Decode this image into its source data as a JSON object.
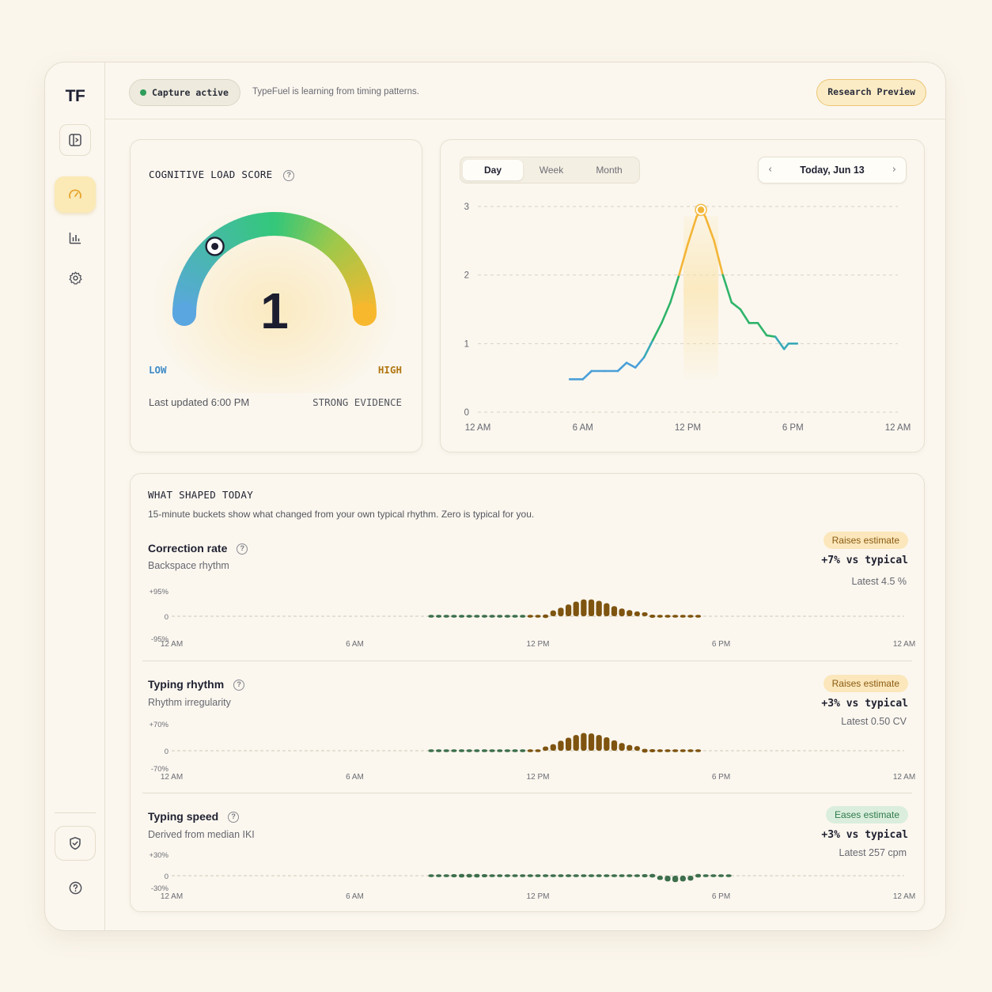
{
  "sidebar": {
    "logo": "TF",
    "items": [
      {
        "name": "panel-toggle-icon"
      },
      {
        "name": "gauge-icon",
        "active": true
      },
      {
        "name": "bar-chart-icon"
      },
      {
        "name": "gear-icon"
      },
      {
        "name": "shield-icon"
      },
      {
        "name": "help-icon"
      }
    ]
  },
  "topbar": {
    "status_pill": "Capture active",
    "status_message": "TypeFuel is learning from timing patterns.",
    "preview_badge": "Research Preview"
  },
  "gauge": {
    "title": "COGNITIVE LOAD SCORE",
    "score": "1",
    "score_fraction": 0.27,
    "low_label": "LOW",
    "high_label": "HIGH",
    "last_updated": "Last updated 6:00 PM",
    "evidence": "STRONG EVIDENCE"
  },
  "timeline": {
    "tabs": [
      "Day",
      "Week",
      "Month"
    ],
    "active_tab": "Day",
    "date_label": "Today, Jun 13",
    "chart_data": {
      "type": "line",
      "x_unit": "hour",
      "xlim": [
        0,
        24
      ],
      "ylim": [
        0,
        3
      ],
      "yticks": [
        0,
        1,
        2,
        3
      ],
      "xtick_labels": [
        "12 AM",
        "6 AM",
        "12 PM",
        "6 PM",
        "12 AM"
      ],
      "points": [
        [
          5.25,
          0.48
        ],
        [
          6.0,
          0.48
        ],
        [
          6.5,
          0.6
        ],
        [
          7.25,
          0.6
        ],
        [
          8.0,
          0.6
        ],
        [
          8.5,
          0.72
        ],
        [
          9.0,
          0.65
        ],
        [
          9.5,
          0.8
        ],
        [
          10.0,
          1.05
        ],
        [
          10.5,
          1.3
        ],
        [
          11.0,
          1.6
        ],
        [
          11.5,
          2.0
        ],
        [
          12.0,
          2.45
        ],
        [
          12.5,
          2.85
        ],
        [
          12.75,
          2.95
        ],
        [
          13.0,
          2.85
        ],
        [
          13.5,
          2.5
        ],
        [
          14.0,
          2.0
        ],
        [
          14.5,
          1.6
        ],
        [
          15.0,
          1.5
        ],
        [
          15.5,
          1.3
        ],
        [
          16.0,
          1.3
        ],
        [
          16.5,
          1.12
        ],
        [
          17.0,
          1.1
        ],
        [
          17.5,
          0.92
        ],
        [
          17.75,
          1.0
        ],
        [
          18.25,
          1.0
        ]
      ],
      "peak": {
        "x": 12.75,
        "y": 2.95
      }
    }
  },
  "shaped": {
    "title": "WHAT SHAPED TODAY",
    "subtitle": "15-minute buckets show what changed from your own typical rhythm. Zero is typical for you.",
    "x_labels": [
      "12 AM",
      "6 AM",
      "12 PM",
      "6 PM",
      "12 AM"
    ],
    "metrics": [
      {
        "name": "Correction rate",
        "desc": "Backspace rhythm",
        "badge": "Raises estimate",
        "badge_kind": "raise",
        "delta": "+7% vs typical",
        "latest": "Latest 4.5 %",
        "ymax_label": "+95%",
        "zero_label": "0",
        "ymin_label": "-95%",
        "chart_data": {
          "type": "bar",
          "ylim": [
            -95,
            95
          ],
          "start_hour": 8.5,
          "bucket_minutes": 15,
          "values": [
            -6,
            -7,
            -7,
            -7,
            -7,
            -7,
            -7,
            -6,
            -6,
            -5,
            -5,
            -4,
            -3,
            3,
            7,
            13,
            22,
            32,
            44,
            55,
            63,
            63,
            58,
            49,
            38,
            29,
            23,
            18,
            15,
            12,
            10,
            8,
            6,
            5,
            4,
            3
          ]
        }
      },
      {
        "name": "Typing rhythm",
        "desc": "Rhythm irregularity",
        "badge": "Raises estimate",
        "badge_kind": "raise",
        "delta": "+3% vs typical",
        "latest": "Latest 0.50 CV",
        "ymax_label": "+70%",
        "zero_label": "0",
        "ymin_label": "-70%",
        "chart_data": {
          "type": "bar",
          "ylim": [
            -70,
            70
          ],
          "start_hour": 8.5,
          "bucket_minutes": 15,
          "values": [
            -6,
            -7,
            -7,
            -7,
            -7,
            -7,
            -7,
            -6,
            -6,
            -5,
            -5,
            -4,
            -3,
            3,
            6,
            11,
            17,
            26,
            34,
            41,
            46,
            45,
            41,
            35,
            27,
            20,
            15,
            12,
            10,
            8,
            7,
            5,
            4,
            3,
            3,
            2
          ]
        }
      },
      {
        "name": "Typing speed",
        "desc": "Derived from median IKI",
        "badge": "Eases estimate",
        "badge_kind": "ease",
        "delta": "+3% vs typical",
        "latest": "Latest 257 cpm",
        "ymax_label": "+30%",
        "zero_label": "0",
        "ymin_label": "-30%",
        "chart_data": {
          "type": "bar",
          "ylim": [
            -30,
            30
          ],
          "start_hour": 8.5,
          "bucket_minutes": 15,
          "values": [
            4,
            4,
            4,
            4.5,
            5,
            5,
            5,
            4.5,
            4,
            3,
            2.5,
            2,
            1,
            -1.5,
            -2,
            -2.5,
            -3,
            -3.5,
            -3.5,
            -4,
            -4,
            -4,
            -4,
            -4,
            -4,
            -4,
            -4,
            -4,
            -4.5,
            -5,
            -6,
            -8,
            -9,
            -8,
            -7,
            -5,
            -4,
            -3,
            -2,
            -1.5
          ]
        }
      }
    ]
  },
  "colors": {
    "accent_amber": "#f3b537",
    "raise_bar": "#7e5410",
    "ease_bar": "#3d6f4c",
    "line_blue": "#4a9fd8",
    "line_green": "#2fb46a"
  }
}
